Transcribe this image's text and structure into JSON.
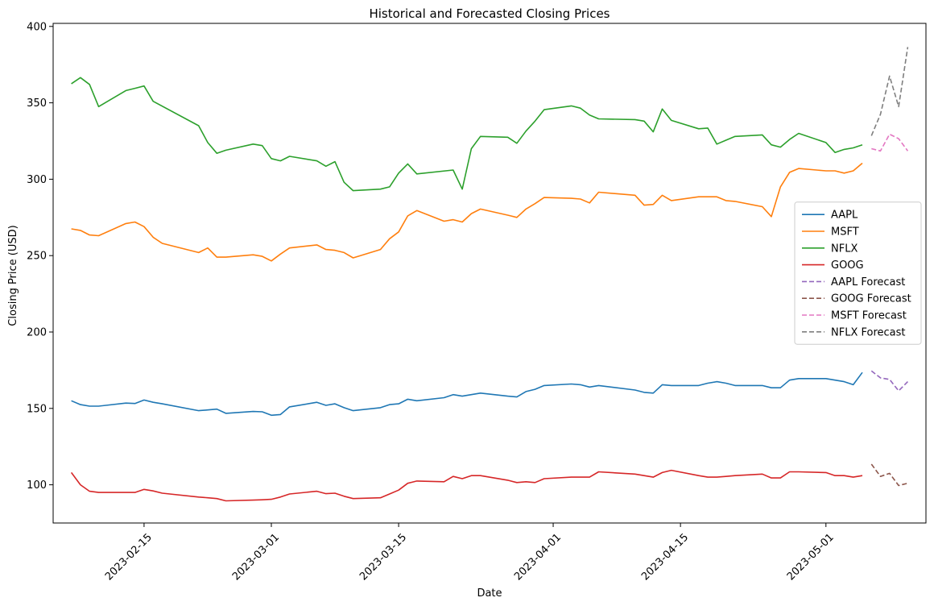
{
  "chart_data": {
    "type": "line",
    "title": "Historical and Forecasted Closing Prices",
    "xlabel": "Date",
    "ylabel": "Closing Price (USD)",
    "xlim": [
      "2023-02-05",
      "2023-05-12"
    ],
    "ylim": [
      75,
      402
    ],
    "x_ticks": [
      "2023-02-15",
      "2023-03-01",
      "2023-03-15",
      "2023-04-01",
      "2023-04-15",
      "2023-05-01"
    ],
    "y_ticks": [
      100,
      150,
      200,
      250,
      300,
      350,
      400
    ],
    "grid": false,
    "legend_position": "center right",
    "series": [
      {
        "name": "AAPL",
        "color": "#1f77b4",
        "dashed": false,
        "points": [
          [
            "2023-02-07",
            155.0
          ],
          [
            "2023-02-08",
            152.5
          ],
          [
            "2023-02-09",
            151.5
          ],
          [
            "2023-02-10",
            151.5
          ],
          [
            "2023-02-13",
            153.5
          ],
          [
            "2023-02-14",
            153.2
          ],
          [
            "2023-02-15",
            155.5
          ],
          [
            "2023-02-16",
            154.0
          ],
          [
            "2023-02-17",
            153.0
          ],
          [
            "2023-02-21",
            148.5
          ],
          [
            "2023-02-22",
            149.0
          ],
          [
            "2023-02-23",
            149.5
          ],
          [
            "2023-02-24",
            146.8
          ],
          [
            "2023-02-27",
            148.0
          ],
          [
            "2023-02-28",
            147.8
          ],
          [
            "2023-03-01",
            145.5
          ],
          [
            "2023-03-02",
            146.0
          ],
          [
            "2023-03-03",
            151.0
          ],
          [
            "2023-03-06",
            154.0
          ],
          [
            "2023-03-07",
            152.0
          ],
          [
            "2023-03-08",
            153.0
          ],
          [
            "2023-03-09",
            150.5
          ],
          [
            "2023-03-10",
            148.5
          ],
          [
            "2023-03-13",
            150.5
          ],
          [
            "2023-03-14",
            152.5
          ],
          [
            "2023-03-15",
            153.0
          ],
          [
            "2023-03-16",
            156.0
          ],
          [
            "2023-03-17",
            155.0
          ],
          [
            "2023-03-20",
            157.0
          ],
          [
            "2023-03-21",
            159.0
          ],
          [
            "2023-03-22",
            158.0
          ],
          [
            "2023-03-23",
            159.0
          ],
          [
            "2023-03-24",
            160.0
          ],
          [
            "2023-03-27",
            158.0
          ],
          [
            "2023-03-28",
            157.5
          ],
          [
            "2023-03-29",
            161.0
          ],
          [
            "2023-03-30",
            162.5
          ],
          [
            "2023-03-31",
            165.0
          ],
          [
            "2023-04-03",
            166.0
          ],
          [
            "2023-04-04",
            165.5
          ],
          [
            "2023-04-05",
            164.0
          ],
          [
            "2023-04-06",
            165.0
          ],
          [
            "2023-04-10",
            162.0
          ],
          [
            "2023-04-11",
            160.5
          ],
          [
            "2023-04-12",
            160.0
          ],
          [
            "2023-04-13",
            165.5
          ],
          [
            "2023-04-14",
            165.0
          ],
          [
            "2023-04-17",
            165.0
          ],
          [
            "2023-04-18",
            166.5
          ],
          [
            "2023-04-19",
            167.5
          ],
          [
            "2023-04-20",
            166.5
          ],
          [
            "2023-04-21",
            165.0
          ],
          [
            "2023-04-24",
            165.0
          ],
          [
            "2023-04-25",
            163.5
          ],
          [
            "2023-04-26",
            163.5
          ],
          [
            "2023-04-27",
            168.5
          ],
          [
            "2023-04-28",
            169.5
          ],
          [
            "2023-05-01",
            169.5
          ],
          [
            "2023-05-02",
            168.5
          ],
          [
            "2023-05-03",
            167.5
          ],
          [
            "2023-05-04",
            165.5
          ],
          [
            "2023-05-05",
            173.5
          ]
        ]
      },
      {
        "name": "MSFT",
        "color": "#ff7f0e",
        "dashed": false,
        "points": [
          [
            "2023-02-07",
            267.5
          ],
          [
            "2023-02-08",
            266.5
          ],
          [
            "2023-02-09",
            263.5
          ],
          [
            "2023-02-10",
            263.0
          ],
          [
            "2023-02-13",
            271.0
          ],
          [
            "2023-02-14",
            272.0
          ],
          [
            "2023-02-15",
            269.0
          ],
          [
            "2023-02-16",
            262.0
          ],
          [
            "2023-02-17",
            258.0
          ],
          [
            "2023-02-21",
            252.0
          ],
          [
            "2023-02-22",
            255.0
          ],
          [
            "2023-02-23",
            249.0
          ],
          [
            "2023-02-24",
            249.0
          ],
          [
            "2023-02-27",
            250.5
          ],
          [
            "2023-02-28",
            249.5
          ],
          [
            "2023-03-01",
            246.5
          ],
          [
            "2023-03-02",
            251.0
          ],
          [
            "2023-03-03",
            255.0
          ],
          [
            "2023-03-06",
            257.0
          ],
          [
            "2023-03-07",
            254.0
          ],
          [
            "2023-03-08",
            253.5
          ],
          [
            "2023-03-09",
            252.0
          ],
          [
            "2023-03-10",
            248.5
          ],
          [
            "2023-03-13",
            254.0
          ],
          [
            "2023-03-14",
            261.0
          ],
          [
            "2023-03-15",
            265.5
          ],
          [
            "2023-03-16",
            276.0
          ],
          [
            "2023-03-17",
            279.5
          ],
          [
            "2023-03-20",
            272.5
          ],
          [
            "2023-03-21",
            273.5
          ],
          [
            "2023-03-22",
            272.0
          ],
          [
            "2023-03-23",
            277.5
          ],
          [
            "2023-03-24",
            280.5
          ],
          [
            "2023-03-27",
            276.5
          ],
          [
            "2023-03-28",
            275.0
          ],
          [
            "2023-03-29",
            280.5
          ],
          [
            "2023-03-30",
            284.0
          ],
          [
            "2023-03-31",
            288.0
          ],
          [
            "2023-04-03",
            287.5
          ],
          [
            "2023-04-04",
            287.0
          ],
          [
            "2023-04-05",
            284.5
          ],
          [
            "2023-04-06",
            291.5
          ],
          [
            "2023-04-10",
            289.5
          ],
          [
            "2023-04-11",
            283.0
          ],
          [
            "2023-04-12",
            283.5
          ],
          [
            "2023-04-13",
            289.5
          ],
          [
            "2023-04-14",
            286.0
          ],
          [
            "2023-04-17",
            288.5
          ],
          [
            "2023-04-18",
            288.5
          ],
          [
            "2023-04-19",
            288.5
          ],
          [
            "2023-04-20",
            286.0
          ],
          [
            "2023-04-21",
            285.5
          ],
          [
            "2023-04-24",
            282.0
          ],
          [
            "2023-04-25",
            275.5
          ],
          [
            "2023-04-26",
            295.0
          ],
          [
            "2023-04-27",
            304.5
          ],
          [
            "2023-04-28",
            307.0
          ],
          [
            "2023-05-01",
            305.5
          ],
          [
            "2023-05-02",
            305.5
          ],
          [
            "2023-05-03",
            304.0
          ],
          [
            "2023-05-04",
            305.5
          ],
          [
            "2023-05-05",
            310.5
          ]
        ]
      },
      {
        "name": "NFLX",
        "color": "#2ca02c",
        "dashed": false,
        "points": [
          [
            "2023-02-07",
            362.5
          ],
          [
            "2023-02-08",
            366.5
          ],
          [
            "2023-02-09",
            362.0
          ],
          [
            "2023-02-10",
            347.5
          ],
          [
            "2023-02-13",
            358.0
          ],
          [
            "2023-02-14",
            359.5
          ],
          [
            "2023-02-15",
            361.0
          ],
          [
            "2023-02-16",
            351.0
          ],
          [
            "2023-02-21",
            335.0
          ],
          [
            "2023-02-22",
            324.0
          ],
          [
            "2023-02-23",
            317.0
          ],
          [
            "2023-02-24",
            319.0
          ],
          [
            "2023-02-27",
            323.0
          ],
          [
            "2023-02-28",
            322.0
          ],
          [
            "2023-03-01",
            313.5
          ],
          [
            "2023-03-02",
            312.0
          ],
          [
            "2023-03-03",
            315.0
          ],
          [
            "2023-03-06",
            312.0
          ],
          [
            "2023-03-07",
            308.5
          ],
          [
            "2023-03-08",
            311.5
          ],
          [
            "2023-03-09",
            298.0
          ],
          [
            "2023-03-10",
            292.5
          ],
          [
            "2023-03-13",
            293.5
          ],
          [
            "2023-03-14",
            295.0
          ],
          [
            "2023-03-15",
            304.0
          ],
          [
            "2023-03-16",
            310.0
          ],
          [
            "2023-03-17",
            303.5
          ],
          [
            "2023-03-21",
            306.0
          ],
          [
            "2023-03-22",
            293.5
          ],
          [
            "2023-03-23",
            320.0
          ],
          [
            "2023-03-24",
            328.0
          ],
          [
            "2023-03-27",
            327.5
          ],
          [
            "2023-03-28",
            323.5
          ],
          [
            "2023-03-29",
            331.5
          ],
          [
            "2023-03-30",
            338.0
          ],
          [
            "2023-03-31",
            345.5
          ],
          [
            "2023-04-03",
            348.0
          ],
          [
            "2023-04-04",
            346.5
          ],
          [
            "2023-04-05",
            342.0
          ],
          [
            "2023-04-06",
            339.5
          ],
          [
            "2023-04-10",
            339.0
          ],
          [
            "2023-04-11",
            338.0
          ],
          [
            "2023-04-12",
            331.0
          ],
          [
            "2023-04-13",
            346.0
          ],
          [
            "2023-04-14",
            338.5
          ],
          [
            "2023-04-17",
            333.0
          ],
          [
            "2023-04-18",
            333.5
          ],
          [
            "2023-04-19",
            323.0
          ],
          [
            "2023-04-20",
            325.5
          ],
          [
            "2023-04-21",
            328.0
          ],
          [
            "2023-04-24",
            329.0
          ],
          [
            "2023-04-25",
            322.5
          ],
          [
            "2023-04-26",
            321.0
          ],
          [
            "2023-04-27",
            326.0
          ],
          [
            "2023-04-28",
            330.0
          ],
          [
            "2023-05-01",
            324.0
          ],
          [
            "2023-05-02",
            317.5
          ],
          [
            "2023-05-03",
            319.5
          ],
          [
            "2023-05-04",
            320.5
          ],
          [
            "2023-05-05",
            322.5
          ]
        ]
      },
      {
        "name": "GOOG",
        "color": "#d62728",
        "dashed": false,
        "points": [
          [
            "2023-02-07",
            108.0
          ],
          [
            "2023-02-08",
            100.0
          ],
          [
            "2023-02-09",
            95.8
          ],
          [
            "2023-02-10",
            95.0
          ],
          [
            "2023-02-13",
            95.0
          ],
          [
            "2023-02-14",
            95.0
          ],
          [
            "2023-02-15",
            97.0
          ],
          [
            "2023-02-16",
            96.0
          ],
          [
            "2023-02-17",
            94.5
          ],
          [
            "2023-02-21",
            92.0
          ],
          [
            "2023-02-22",
            91.5
          ],
          [
            "2023-02-23",
            91.0
          ],
          [
            "2023-02-24",
            89.5
          ],
          [
            "2023-02-27",
            90.0
          ],
          [
            "2023-02-28",
            90.2
          ],
          [
            "2023-03-01",
            90.5
          ],
          [
            "2023-03-02",
            92.0
          ],
          [
            "2023-03-03",
            94.0
          ],
          [
            "2023-03-06",
            95.8
          ],
          [
            "2023-03-07",
            94.2
          ],
          [
            "2023-03-08",
            94.5
          ],
          [
            "2023-03-09",
            92.5
          ],
          [
            "2023-03-10",
            91.0
          ],
          [
            "2023-03-13",
            91.5
          ],
          [
            "2023-03-14",
            94.0
          ],
          [
            "2023-03-15",
            96.5
          ],
          [
            "2023-03-16",
            101.0
          ],
          [
            "2023-03-17",
            102.5
          ],
          [
            "2023-03-20",
            102.0
          ],
          [
            "2023-03-21",
            105.5
          ],
          [
            "2023-03-22",
            104.0
          ],
          [
            "2023-03-23",
            106.0
          ],
          [
            "2023-03-24",
            106.0
          ],
          [
            "2023-03-27",
            103.0
          ],
          [
            "2023-03-28",
            101.5
          ],
          [
            "2023-03-29",
            102.0
          ],
          [
            "2023-03-30",
            101.5
          ],
          [
            "2023-03-31",
            104.0
          ],
          [
            "2023-04-03",
            105.0
          ],
          [
            "2023-04-04",
            105.0
          ],
          [
            "2023-04-05",
            105.0
          ],
          [
            "2023-04-06",
            108.5
          ],
          [
            "2023-04-10",
            107.0
          ],
          [
            "2023-04-11",
            106.0
          ],
          [
            "2023-04-12",
            105.0
          ],
          [
            "2023-04-13",
            108.0
          ],
          [
            "2023-04-14",
            109.5
          ],
          [
            "2023-04-17",
            106.0
          ],
          [
            "2023-04-18",
            105.0
          ],
          [
            "2023-04-19",
            105.0
          ],
          [
            "2023-04-20",
            105.5
          ],
          [
            "2023-04-21",
            106.0
          ],
          [
            "2023-04-24",
            107.0
          ],
          [
            "2023-04-25",
            104.5
          ],
          [
            "2023-04-26",
            104.5
          ],
          [
            "2023-04-27",
            108.5
          ],
          [
            "2023-04-28",
            108.5
          ],
          [
            "2023-05-01",
            108.0
          ],
          [
            "2023-05-02",
            106.0
          ],
          [
            "2023-05-03",
            106.0
          ],
          [
            "2023-05-04",
            105.0
          ],
          [
            "2023-05-05",
            106.0
          ]
        ]
      },
      {
        "name": "AAPL Forecast",
        "color": "#9467bd",
        "dashed": true,
        "points": [
          [
            "2023-05-06",
            174.5
          ],
          [
            "2023-05-07",
            170.0
          ],
          [
            "2023-05-08",
            169.0
          ],
          [
            "2023-05-09",
            161.5
          ],
          [
            "2023-05-10",
            167.5
          ]
        ]
      },
      {
        "name": "GOOG Forecast",
        "color": "#8c564b",
        "dashed": true,
        "points": [
          [
            "2023-05-06",
            113.5
          ],
          [
            "2023-05-07",
            105.5
          ],
          [
            "2023-05-08",
            107.5
          ],
          [
            "2023-05-09",
            99.5
          ],
          [
            "2023-05-10",
            101.0
          ]
        ]
      },
      {
        "name": "MSFT Forecast",
        "color": "#e377c2",
        "dashed": true,
        "points": [
          [
            "2023-05-06",
            320.0
          ],
          [
            "2023-05-07",
            318.5
          ],
          [
            "2023-05-08",
            329.5
          ],
          [
            "2023-05-09",
            326.5
          ],
          [
            "2023-05-10",
            318.5
          ]
        ]
      },
      {
        "name": "NFLX Forecast",
        "color": "#7f7f7f",
        "dashed": true,
        "points": [
          [
            "2023-05-06",
            328.5
          ],
          [
            "2023-05-07",
            342.5
          ],
          [
            "2023-05-08",
            367.5
          ],
          [
            "2023-05-09",
            347.5
          ],
          [
            "2023-05-10",
            386.5
          ]
        ]
      }
    ]
  }
}
